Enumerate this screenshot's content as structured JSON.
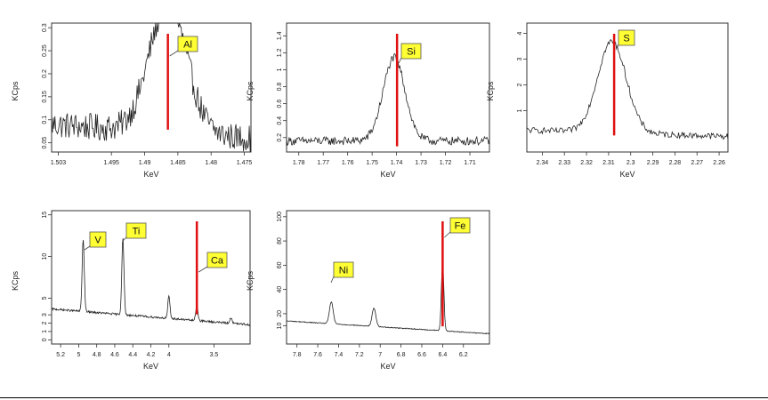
{
  "colors": {
    "axis": "#333333",
    "spectrum_line": "#222222",
    "marker_line": "#e01010",
    "label_fill": "#ffff33",
    "label_border": "#555555"
  },
  "chart_data": [
    {
      "type": "line",
      "element": "Al",
      "xlabel": "KeV",
      "ylabel": "KCps",
      "x_reversed": true,
      "xlim": [
        1.504,
        1.474
      ],
      "ylim": [
        0.03,
        0.31
      ],
      "xticks": [
        1.503,
        1.495,
        1.49,
        1.485,
        1.48,
        1.475
      ],
      "xtick_labels": [
        "1.503",
        "1.495",
        "1.49",
        "1.485",
        "1.48",
        "1.475"
      ],
      "yticks": [
        0.05,
        0.1,
        0.15,
        0.2,
        0.25,
        0.3
      ],
      "ytick_labels": [
        "0.05",
        "0.1",
        "0.15",
        "0.2",
        "0.25",
        "0.3"
      ],
      "marker_x": 1.4865,
      "peak": {
        "center": 1.4865,
        "height": 0.28,
        "width": 0.0028
      },
      "baseline": [
        [
          1.504,
          0.09
        ],
        [
          1.474,
          0.06
        ]
      ],
      "noise": 0.03,
      "samples": 240
    },
    {
      "type": "line",
      "element": "Si",
      "xlabel": "KeV",
      "ylabel": "KCps",
      "x_reversed": true,
      "xlim": [
        1.785,
        1.702
      ],
      "ylim": [
        0.03,
        1.55
      ],
      "xticks": [
        1.78,
        1.77,
        1.76,
        1.75,
        1.74,
        1.73,
        1.72,
        1.71
      ],
      "xtick_labels": [
        "1.78",
        "1.77",
        "1.76",
        "1.75",
        "1.74",
        "1.73",
        "1.72",
        "1.71"
      ],
      "yticks": [
        0.2,
        0.4,
        0.6,
        0.8,
        1,
        1.2,
        1.4
      ],
      "ytick_labels": [
        "0.2",
        "0.4",
        "0.6",
        "0.8",
        "1",
        "1.2",
        "1.4"
      ],
      "marker_x": 1.7398,
      "peak": {
        "center": 1.741,
        "height": 0.98,
        "width": 0.0045
      },
      "baseline": [
        [
          1.785,
          0.16
        ],
        [
          1.702,
          0.16
        ]
      ],
      "noise": 0.05,
      "samples": 240
    },
    {
      "type": "line",
      "element": "S",
      "xlabel": "KeV",
      "ylabel": "KCps",
      "x_reversed": true,
      "xlim": [
        2.347,
        2.256
      ],
      "ylim": [
        -0.6,
        4.4
      ],
      "xticks": [
        2.34,
        2.33,
        2.32,
        2.31,
        2.3,
        2.29,
        2.28,
        2.27,
        2.26
      ],
      "xtick_labels": [
        "2.34",
        "2.33",
        "2.32",
        "2.31",
        "2.3",
        "2.29",
        "2.28",
        "2.27",
        "2.26"
      ],
      "yticks": [
        1,
        2,
        3,
        4
      ],
      "ytick_labels": [
        "1",
        "2",
        "3",
        "4"
      ],
      "marker_x": 2.3075,
      "peak": {
        "center": 2.3085,
        "height": 3.55,
        "width": 0.0065
      },
      "baseline": [
        [
          2.347,
          0.25
        ],
        [
          2.256,
          0.0
        ]
      ],
      "noise": 0.12,
      "samples": 220
    },
    {
      "type": "line",
      "element": "Ca",
      "xlabel": "KeV",
      "ylabel": "KCps",
      "x_reversed": true,
      "xlim": [
        5.3,
        3.1
      ],
      "ylim": [
        -0.5,
        15.5
      ],
      "xticks": [
        5.2,
        5,
        4.8,
        4.6,
        4.4,
        4.2,
        4,
        3.5
      ],
      "xtick_labels": [
        "5.2",
        "5",
        "4.8",
        "4.6",
        "4.4",
        "4.2",
        "4",
        "3.5"
      ],
      "yticks": [
        0,
        1,
        2,
        3,
        5,
        10,
        15
      ],
      "ytick_labels": [
        "0",
        "1",
        "2",
        "3",
        "5",
        "10",
        "15"
      ],
      "marker_x": 3.69,
      "peaks": [
        {
          "label": "V",
          "center": 4.95,
          "height": 8.6,
          "width": 0.012
        },
        {
          "label": "Ti",
          "center": 4.51,
          "height": 9.1,
          "width": 0.012
        },
        {
          "center": 4.0,
          "height": 2.6,
          "width": 0.012
        },
        {
          "center": 3.69,
          "height": 1.8,
          "width": 0.012
        },
        {
          "center": 3.31,
          "height": 0.7,
          "width": 0.012
        }
      ],
      "baseline": [
        [
          5.3,
          3.7
        ],
        [
          3.1,
          1.8
        ]
      ],
      "noise": 0.12,
      "samples": 420,
      "extra_labels": [
        "V",
        "Ti"
      ]
    },
    {
      "type": "line",
      "element": "Fe",
      "xlabel": "KeV",
      "ylabel": "KCps",
      "x_reversed": true,
      "xlim": [
        7.9,
        5.95
      ],
      "ylim": [
        -5,
        105
      ],
      "xticks": [
        7.8,
        7.6,
        7.4,
        7.2,
        7,
        6.8,
        6.6,
        6.4,
        6.2
      ],
      "xtick_labels": [
        "7.8",
        "7.6",
        "7.4",
        "7.2",
        "7",
        "6.8",
        "6.6",
        "6.4",
        "6.2"
      ],
      "yticks": [
        10,
        20,
        40,
        60,
        80,
        100
      ],
      "ytick_labels": [
        "10",
        "20",
        "40",
        "60",
        "80",
        "100"
      ],
      "marker_x": 6.4,
      "peaks": [
        {
          "label": "Ni",
          "center": 7.47,
          "height": 18,
          "width": 0.018
        },
        {
          "center": 7.06,
          "height": 15,
          "width": 0.018
        },
        {
          "center": 6.4,
          "height": 56,
          "width": 0.012
        }
      ],
      "baseline": [
        [
          7.9,
          14
        ],
        [
          5.95,
          3.5
        ]
      ],
      "noise": 0.35,
      "samples": 400,
      "extra_labels": [
        "Ni"
      ]
    }
  ]
}
